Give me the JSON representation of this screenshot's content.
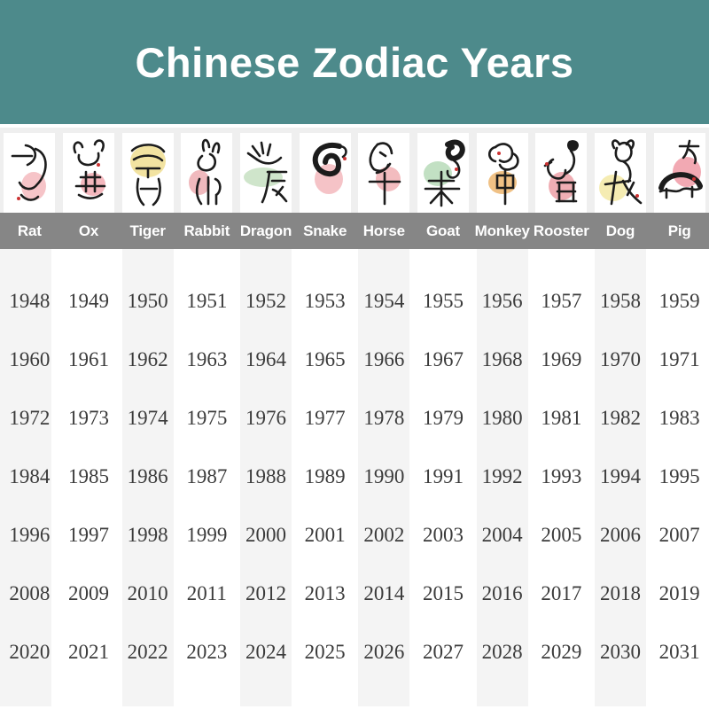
{
  "title": "Chinese Zodiac Years",
  "colors": {
    "header_bg": "#4d8a8b",
    "name_band_bg": "#868686",
    "icon_band_bg": "#efefef",
    "column_stripe": "#f4f4f4",
    "year_text": "#3b3b3b",
    "ink": "#1c1c1c",
    "accent_red": "#cc3333"
  },
  "zodiac": {
    "columns": [
      {
        "key": "rat",
        "name": "Rat",
        "character": "子",
        "blob_color": "#f6c4c8",
        "years": [
          1948,
          1960,
          1972,
          1984,
          1996,
          2008,
          2020
        ]
      },
      {
        "key": "ox",
        "name": "Ox",
        "character": "丑",
        "blob_color": "#f4b7bd",
        "years": [
          1949,
          1961,
          1973,
          1985,
          1997,
          2009,
          2021
        ]
      },
      {
        "key": "tiger",
        "name": "Tiger",
        "character": "寅",
        "blob_color": "#f2e3a1",
        "years": [
          1950,
          1962,
          1974,
          1986,
          1998,
          2010,
          2022
        ]
      },
      {
        "key": "rabbit",
        "name": "Rabbit",
        "character": "卯",
        "blob_color": "#f0b9bd",
        "years": [
          1951,
          1963,
          1975,
          1987,
          1999,
          2011,
          2023
        ]
      },
      {
        "key": "dragon",
        "name": "Dragon",
        "character": "辰",
        "blob_color": "#cfe5cb",
        "years": [
          1952,
          1964,
          1976,
          1988,
          2000,
          2012,
          2024
        ]
      },
      {
        "key": "snake",
        "name": "Snake",
        "character": "巳",
        "blob_color": "#f5c3c7",
        "years": [
          1953,
          1965,
          1977,
          1989,
          2001,
          2013,
          2025
        ]
      },
      {
        "key": "horse",
        "name": "Horse",
        "character": "午",
        "blob_color": "#f3bcbf",
        "years": [
          1954,
          1966,
          1978,
          1990,
          2002,
          2014,
          2026
        ]
      },
      {
        "key": "goat",
        "name": "Goat",
        "character": "未",
        "blob_color": "#c2e0c3",
        "years": [
          1955,
          1967,
          1979,
          1991,
          2003,
          2015,
          2027
        ]
      },
      {
        "key": "monkey",
        "name": "Monkey",
        "character": "申",
        "blob_color": "#f0c185",
        "years": [
          1956,
          1968,
          1980,
          1992,
          2004,
          2016,
          2028
        ]
      },
      {
        "key": "rooster",
        "name": "Rooster",
        "character": "酉",
        "blob_color": "#f0aeb4",
        "years": [
          1957,
          1969,
          1981,
          1993,
          2005,
          2017,
          2029
        ]
      },
      {
        "key": "dog",
        "name": "Dog",
        "character": "戌",
        "blob_color": "#f5ecb2",
        "years": [
          1958,
          1970,
          1982,
          1994,
          2006,
          2018,
          2030
        ]
      },
      {
        "key": "pig",
        "name": "Pig",
        "character": "亥",
        "blob_color": "#f2a9b3",
        "years": [
          1959,
          1971,
          1983,
          1995,
          2007,
          2019,
          2031
        ]
      }
    ]
  },
  "chart_data": {
    "type": "table",
    "title": "Chinese Zodiac Years",
    "columns": [
      "Rat",
      "Ox",
      "Tiger",
      "Rabbit",
      "Dragon",
      "Snake",
      "Horse",
      "Goat",
      "Monkey",
      "Rooster",
      "Dog",
      "Pig"
    ],
    "rows": [
      [
        1948,
        1949,
        1950,
        1951,
        1952,
        1953,
        1954,
        1955,
        1956,
        1957,
        1958,
        1959
      ],
      [
        1960,
        1961,
        1962,
        1963,
        1964,
        1965,
        1966,
        1967,
        1968,
        1969,
        1970,
        1971
      ],
      [
        1972,
        1973,
        1974,
        1975,
        1976,
        1977,
        1978,
        1979,
        1980,
        1981,
        1982,
        1983
      ],
      [
        1984,
        1985,
        1986,
        1987,
        1988,
        1989,
        1990,
        1991,
        1992,
        1993,
        1994,
        1995
      ],
      [
        1996,
        1997,
        1998,
        1999,
        2000,
        2001,
        2002,
        2003,
        2004,
        2005,
        2006,
        2007
      ],
      [
        2008,
        2009,
        2010,
        2011,
        2012,
        2013,
        2014,
        2015,
        2016,
        2017,
        2018,
        2019
      ],
      [
        2020,
        2021,
        2022,
        2023,
        2024,
        2025,
        2026,
        2027,
        2028,
        2029,
        2030,
        2031
      ]
    ],
    "layout": {
      "striped_columns": "odd",
      "rows_count": 7,
      "columns_count": 12
    }
  }
}
